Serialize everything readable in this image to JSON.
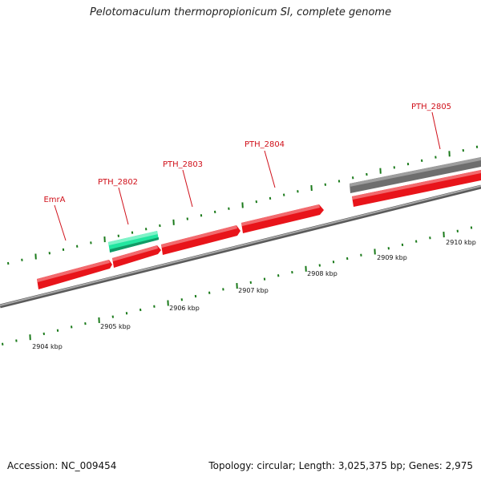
{
  "title": "Pelotomaculum thermopropionicum SI, complete genome",
  "footer": {
    "accession": "Accession: NC_009454",
    "summary": "Topology: circular; Length: 3,025,375 bp; Genes: 2,975"
  },
  "scale_labels": [
    "2904 kbp",
    "2905 kbp",
    "2906 kbp",
    "2907 kbp",
    "2908 kbp",
    "2909 kbp",
    "2910 kbp"
  ],
  "gene_labels": [
    "EmrA",
    "PTH_2802",
    "PTH_2803",
    "PTH_2804",
    "PTH_2805"
  ],
  "colors": {
    "gene_forward": "#e8141a",
    "gene_highlight": "#22e6a0",
    "gene_gray": "#6e6e6e",
    "backbone": "#8a8a8a",
    "tick": "#1a7a1a",
    "label_red": "#d0101a",
    "leader": "#d0101a",
    "scale_text": "#111111"
  }
}
